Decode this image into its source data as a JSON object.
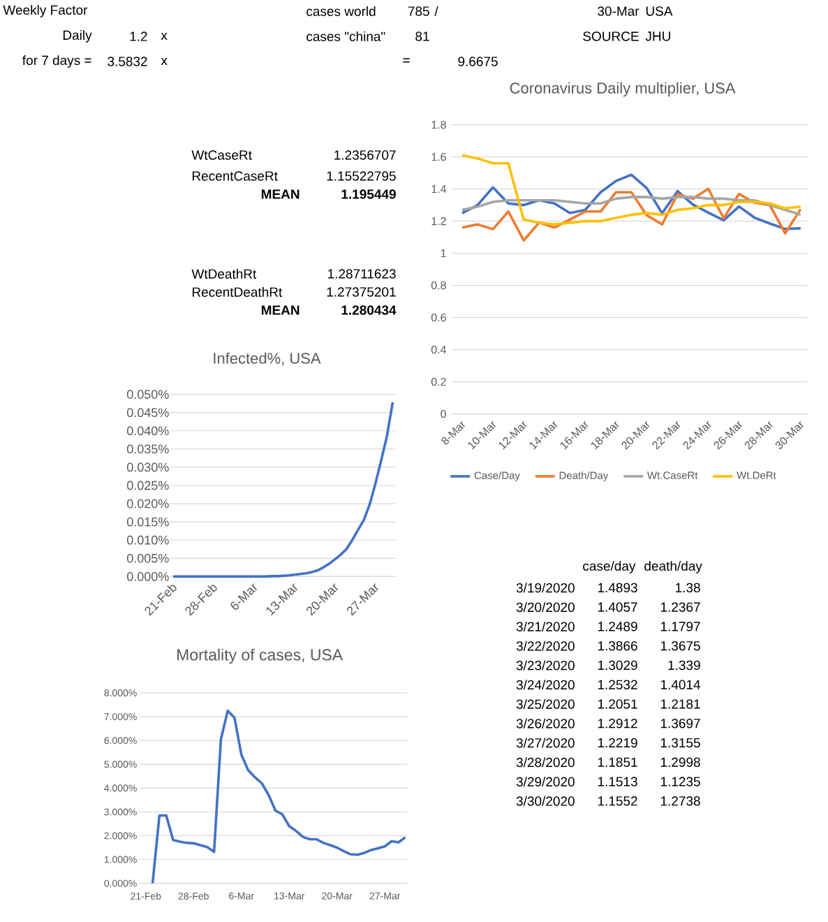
{
  "chart_data": [
    {
      "type": "other",
      "annotations": [
        "Weekly Factor",
        "Daily",
        "1.2",
        "x",
        "for 7 days =",
        "3.5832",
        "x",
        "cases world",
        "785",
        "/",
        "cases \"china\"",
        "81",
        "=",
        "9.6675"
      ]
    },
    {
      "type": "other",
      "annotations": [
        "30-Mar",
        "USA",
        "SOURCE",
        "JHU"
      ]
    },
    {
      "type": "line",
      "title": "Coronavirus Daily multiplier, USA",
      "categories": [
        "8-Mar",
        null,
        "10-Mar",
        null,
        "12-Mar",
        null,
        "14-Mar",
        null,
        "16-Mar",
        null,
        "18-Mar",
        null,
        "20-Mar",
        null,
        "22-Mar",
        null,
        "24-Mar",
        null,
        "26-Mar",
        null,
        "28-Mar",
        null,
        "30-Mar"
      ],
      "series": [
        {
          "name": "Case/Day",
          "color": "#4472c4",
          "values": [
            1.25,
            1.3,
            1.41,
            1.31,
            1.3,
            1.33,
            1.31,
            1.25,
            1.27,
            1.38,
            1.45,
            1.4893,
            1.4057,
            1.2489,
            1.3866,
            1.3029,
            1.2532,
            1.2051,
            1.2912,
            1.2219,
            1.1851,
            1.1513,
            1.1552
          ]
        },
        {
          "name": "Death/Day",
          "color": "#ed7d31",
          "values": [
            1.16,
            1.18,
            1.15,
            1.26,
            1.08,
            1.19,
            1.16,
            1.21,
            1.26,
            1.26,
            1.38,
            1.38,
            1.2367,
            1.1797,
            1.3675,
            1.339,
            1.4014,
            1.2181,
            1.3697,
            1.3155,
            1.2998,
            1.1235,
            1.2738
          ]
        },
        {
          "name": "Wt.CaseRt",
          "color": "#a5a5a5",
          "values": [
            1.27,
            1.29,
            1.32,
            1.33,
            1.33,
            1.33,
            1.33,
            1.32,
            1.31,
            1.31,
            1.34,
            1.35,
            1.35,
            1.34,
            1.35,
            1.35,
            1.34,
            1.34,
            1.33,
            1.33,
            1.3,
            1.27,
            1.24
          ]
        },
        {
          "name": "Wt.DeRt",
          "color": "#ffc000",
          "values": [
            1.61,
            1.59,
            1.56,
            1.56,
            1.21,
            1.19,
            1.18,
            1.19,
            1.2,
            1.2,
            1.22,
            1.24,
            1.25,
            1.24,
            1.27,
            1.28,
            1.3,
            1.3,
            1.32,
            1.32,
            1.31,
            1.28,
            1.29
          ]
        }
      ],
      "ylim": [
        0,
        1.8
      ],
      "yticks": [
        0,
        0.2,
        0.4,
        0.6,
        0.8,
        1,
        1.2,
        1.4,
        1.6,
        1.8
      ],
      "grid": "y",
      "legend": "bottom"
    },
    {
      "type": "other",
      "annotations": [
        "WtCaseRt",
        "1.2356707",
        "RecentCaseRt",
        "1.15522795",
        "MEAN",
        "1.195449",
        "WtDeathRt",
        "1.28711623",
        "RecentDeathRt",
        "1.27375201",
        "MEAN",
        "1.280434"
      ]
    },
    {
      "type": "line",
      "title": "Infected%, USA",
      "categories": [
        "21-Feb",
        null,
        null,
        null,
        null,
        null,
        null,
        "28-Feb",
        null,
        null,
        null,
        null,
        null,
        null,
        "6-Mar",
        null,
        null,
        null,
        null,
        null,
        null,
        "13-Mar",
        null,
        null,
        null,
        null,
        null,
        null,
        "20-Mar",
        null,
        null,
        null,
        null,
        null,
        null,
        "27-Mar",
        null,
        null,
        null
      ],
      "values": [
        0,
        0,
        0,
        0,
        0,
        0,
        0,
        0,
        0,
        0,
        0,
        0,
        0,
        0,
        0,
        0,
        0,
        0.0001,
        0.0001,
        0.0002,
        0.0003,
        0.0005,
        0.0007,
        0.0009,
        0.0012,
        0.0017,
        0.0025,
        0.0035,
        0.0047,
        0.006,
        0.0075,
        0.01,
        0.0128,
        0.0155,
        0.0197,
        0.0254,
        0.0318,
        0.0385,
        0.0478
      ],
      "color": "#4472c4",
      "ylim": [
        0,
        0.05
      ],
      "yticks": [
        {
          "value": 0,
          "label": "0.000%"
        },
        {
          "value": 0.005,
          "label": "0.005%"
        },
        {
          "value": 0.01,
          "label": "0.010%"
        },
        {
          "value": 0.015,
          "label": "0.015%"
        },
        {
          "value": 0.02,
          "label": "0.020%"
        },
        {
          "value": 0.025,
          "label": "0.025%"
        },
        {
          "value": 0.03,
          "label": "0.030%"
        },
        {
          "value": 0.035,
          "label": "0.035%"
        },
        {
          "value": 0.04,
          "label": "0.040%"
        },
        {
          "value": 0.045,
          "label": "0.045%"
        },
        {
          "value": 0.05,
          "label": "0.050%"
        }
      ],
      "grid": "y"
    },
    {
      "type": "other",
      "annotations": [
        "case/day",
        "death/day",
        "3/19/2020",
        "1.4893",
        "1.38",
        "3/20/2020",
        "1.4057",
        "1.2367",
        "3/21/2020",
        "1.2489",
        "1.1797",
        "3/22/2020",
        "1.3866",
        "1.3675",
        "3/23/2020",
        "1.3029",
        "1.339",
        "3/24/2020",
        "1.2532",
        "1.4014",
        "3/25/2020",
        "1.2051",
        "1.2181",
        "3/26/2020",
        "1.2912",
        "1.3697",
        "3/27/2020",
        "1.2219",
        "1.3155",
        "3/28/2020",
        "1.1851",
        "1.2998",
        "3/29/2020",
        "1.1513",
        "1.1235",
        "3/30/2020",
        "1.1552",
        "1.2738"
      ]
    },
    {
      "type": "line",
      "title": "Mortality of cases, USA",
      "categories": [
        "21-Feb",
        null,
        null,
        null,
        null,
        null,
        null,
        "28-Feb",
        null,
        null,
        null,
        null,
        null,
        null,
        "6-Mar",
        null,
        null,
        null,
        null,
        null,
        null,
        "13-Mar",
        null,
        null,
        null,
        null,
        null,
        null,
        "20-Mar",
        null,
        null,
        null,
        null,
        null,
        null,
        "27-Mar",
        null,
        null,
        null
      ],
      "values": [
        null,
        0,
        2.85,
        2.85,
        1.82,
        1.75,
        1.7,
        1.68,
        1.6,
        1.52,
        1.32,
        6.05,
        7.25,
        6.95,
        5.4,
        4.75,
        4.45,
        4.2,
        3.7,
        3.05,
        2.9,
        2.4,
        2.2,
        1.95,
        1.85,
        1.85,
        1.7,
        1.6,
        1.5,
        1.35,
        1.22,
        1.2,
        1.28,
        1.4,
        1.47,
        1.55,
        1.77,
        1.72,
        1.93
      ],
      "color": "#4472c4",
      "ylim": [
        0,
        8
      ],
      "yticks": [
        {
          "value": 0,
          "label": "0.000%"
        },
        {
          "value": 1,
          "label": "1.000%"
        },
        {
          "value": 2,
          "label": "2.000%"
        },
        {
          "value": 3,
          "label": "3.000%"
        },
        {
          "value": 4,
          "label": "4.000%"
        },
        {
          "value": 5,
          "label": "5.000%"
        },
        {
          "value": 6,
          "label": "6.000%"
        },
        {
          "value": 7,
          "label": "7.000%"
        },
        {
          "value": 8,
          "label": "8.000%"
        }
      ],
      "grid": "y"
    }
  ]
}
